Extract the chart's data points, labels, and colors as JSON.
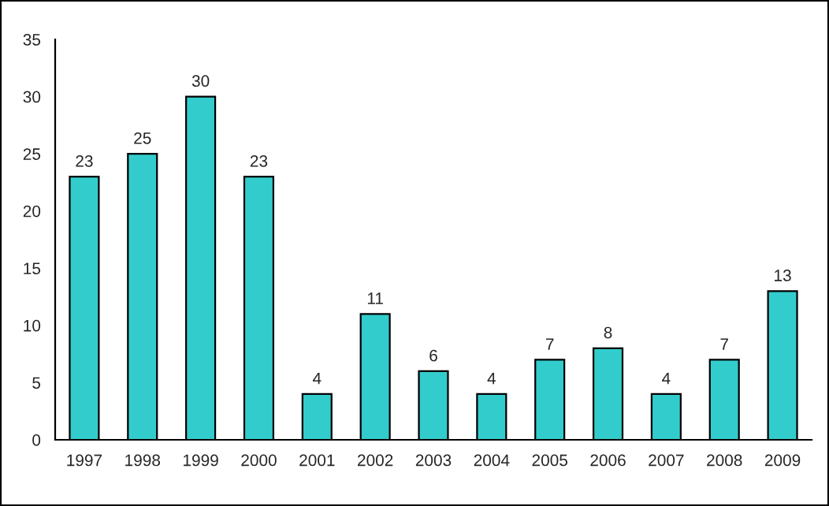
{
  "chart_data": {
    "type": "bar",
    "categories": [
      "1997",
      "1998",
      "1999",
      "2000",
      "2001",
      "2002",
      "2003",
      "2004",
      "2005",
      "2006",
      "2007",
      "2008",
      "2009"
    ],
    "values": [
      23,
      25,
      30,
      23,
      4,
      11,
      6,
      4,
      7,
      8,
      4,
      7,
      13
    ],
    "color": "#33cccc",
    "ylim": [
      0,
      35
    ],
    "yticks": [
      0,
      5,
      10,
      15,
      20,
      25,
      30,
      35
    ],
    "data_labels": true,
    "grid": false,
    "legend": false
  }
}
